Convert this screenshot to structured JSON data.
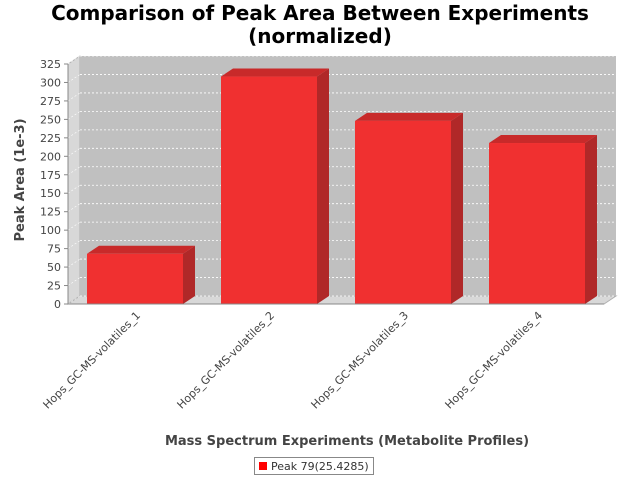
{
  "chart_data": {
    "type": "bar",
    "title_line1": "Comparison of Peak Area Between Experiments",
    "title_line2": "(normalized)",
    "xlabel": "Mass Spectrum Experiments (Metabolite Profiles)",
    "ylabel": "Peak Area (1e-3)",
    "categories": [
      "Hops_GC-MS-volatiles_1",
      "Hops_GC-MS-volatiles_2",
      "Hops_GC-MS-volatiles_3",
      "Hops_GC-MS-volatiles_4"
    ],
    "series": [
      {
        "name": "Peak 79(25.4285)",
        "values": [
          68,
          308,
          248,
          218
        ],
        "color": "#ff0000"
      }
    ],
    "ylim": [
      0,
      325
    ],
    "yticks": [
      0,
      25,
      50,
      75,
      100,
      125,
      150,
      175,
      200,
      225,
      250,
      275,
      300,
      325
    ],
    "grid": true,
    "legend_position": "bottom-center",
    "plot_background": "#c0c0c0"
  }
}
